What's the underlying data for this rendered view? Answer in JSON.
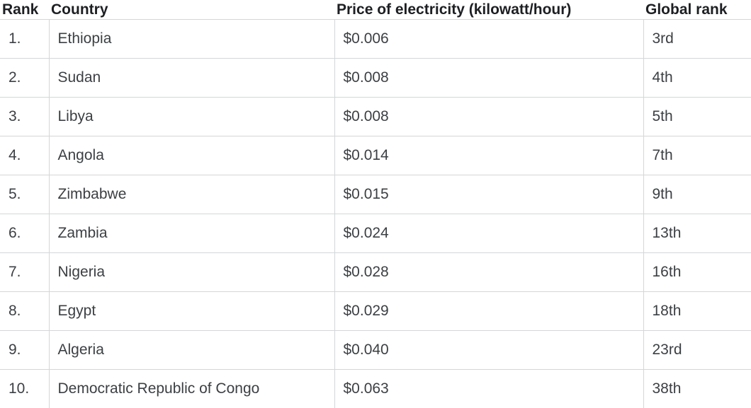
{
  "table": {
    "columns": [
      {
        "id": "rank",
        "label": "Rank"
      },
      {
        "id": "country",
        "label": "Country"
      },
      {
        "id": "price",
        "label": "Price of electricity (kilowatt/hour)"
      },
      {
        "id": "global_rank",
        "label": "Global rank"
      }
    ],
    "rows": [
      {
        "rank": "1.",
        "country": "Ethiopia",
        "price": "$0.006",
        "global_rank": "3rd"
      },
      {
        "rank": "2.",
        "country": "Sudan",
        "price": "$0.008",
        "global_rank": "4th"
      },
      {
        "rank": "3.",
        "country": "Libya",
        "price": "$0.008",
        "global_rank": "5th"
      },
      {
        "rank": "4.",
        "country": "Angola",
        "price": "$0.014",
        "global_rank": "7th"
      },
      {
        "rank": "5.",
        "country": "Zimbabwe",
        "price": "$0.015",
        "global_rank": "9th"
      },
      {
        "rank": "6.",
        "country": "Zambia",
        "price": "$0.024",
        "global_rank": "13th"
      },
      {
        "rank": "7.",
        "country": "Nigeria",
        "price": "$0.028",
        "global_rank": "16th"
      },
      {
        "rank": "8.",
        "country": "Egypt",
        "price": "$0.029",
        "global_rank": "18th"
      },
      {
        "rank": "9.",
        "country": "Algeria",
        "price": "$0.040",
        "global_rank": "23rd"
      },
      {
        "rank": "10.",
        "country": "Democratic Republic of Congo",
        "price": "$0.063",
        "global_rank": "38th"
      }
    ]
  },
  "chart_data": {
    "type": "table",
    "title": "Price of electricity (kilowatt/hour)",
    "columns": [
      "Rank",
      "Country",
      "Price of electricity (kilowatt/hour)",
      "Global rank"
    ],
    "rows": [
      [
        "1.",
        "Ethiopia",
        "$0.006",
        "3rd"
      ],
      [
        "2.",
        "Sudan",
        "$0.008",
        "4th"
      ],
      [
        "3.",
        "Libya",
        "$0.008",
        "5th"
      ],
      [
        "4.",
        "Angola",
        "$0.014",
        "7th"
      ],
      [
        "5.",
        "Zimbabwe",
        "$0.015",
        "9th"
      ],
      [
        "6.",
        "Zambia",
        "$0.024",
        "13th"
      ],
      [
        "7.",
        "Nigeria",
        "$0.028",
        "16th"
      ],
      [
        "8.",
        "Egypt",
        "$0.029",
        "18th"
      ],
      [
        "9.",
        "Algeria",
        "$0.040",
        "23rd"
      ],
      [
        "10.",
        "Democratic Republic of Congo",
        "$0.063",
        "38th"
      ]
    ]
  },
  "colors": {
    "header_text": "#1d1f22",
    "body_text": "#3c4043",
    "border": "#d5d6d8",
    "background": "#ffffff"
  }
}
